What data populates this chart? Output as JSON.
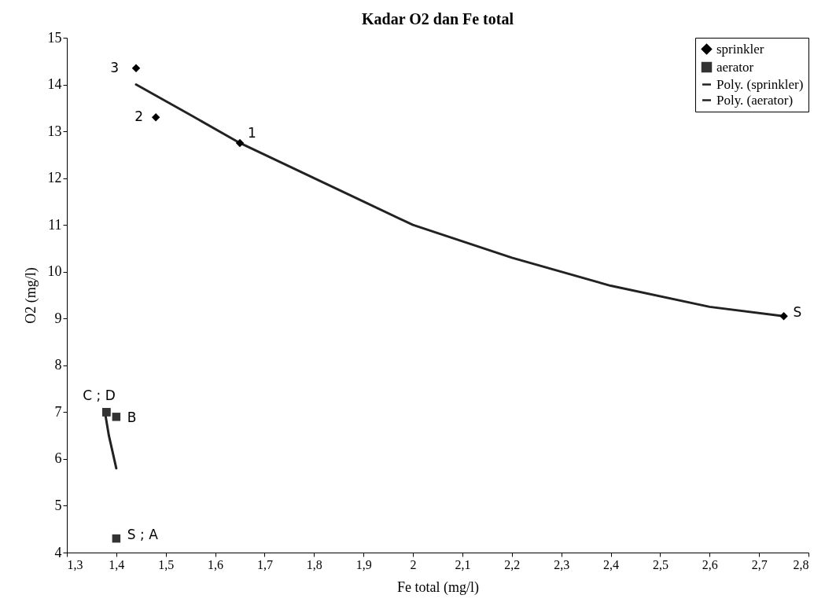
{
  "chart_data": {
    "type": "scatter",
    "title": "Kadar O2 dan Fe total",
    "xlabel": "Fe total (mg/l)",
    "ylabel": "O2 (mg/l)",
    "xlim": [
      1.3,
      2.8
    ],
    "ylim": [
      4,
      15
    ],
    "xticks": [
      {
        "value": 1.3,
        "label": "1,3"
      },
      {
        "value": 1.4,
        "label": "1,4"
      },
      {
        "value": 1.5,
        "label": "1,5"
      },
      {
        "value": 1.6,
        "label": "1,6"
      },
      {
        "value": 1.7,
        "label": "1,7"
      },
      {
        "value": 1.8,
        "label": "1,8"
      },
      {
        "value": 1.9,
        "label": "1,9"
      },
      2,
      {
        "value": 2.1,
        "label": "2,1"
      },
      {
        "value": 2.2,
        "label": "2,2"
      },
      {
        "value": 2.3,
        "label": "2,3"
      },
      {
        "value": 2.4,
        "label": "2,4"
      },
      {
        "value": 2.5,
        "label": "2,5"
      },
      {
        "value": 2.6,
        "label": "2,6"
      },
      {
        "value": 2.7,
        "label": "2,7"
      },
      {
        "value": 2.8,
        "label": "2,8"
      }
    ],
    "yticks": [
      4,
      5,
      6,
      7,
      8,
      9,
      10,
      11,
      12,
      13,
      14,
      15
    ],
    "grid": false,
    "legend": "top right",
    "series": [
      {
        "name": "sprinkler",
        "marker": "diamond",
        "color": "#000000",
        "x": [
          2.75,
          1.65,
          1.48,
          1.44
        ],
        "values": [
          9.05,
          12.75,
          13.3,
          14.35
        ]
      },
      {
        "name": "aerator",
        "marker": "square",
        "color": "#333333",
        "x": [
          1.4,
          1.4,
          1.38,
          1.38
        ],
        "values": [
          4.3,
          6.9,
          7.0,
          7.0
        ]
      },
      {
        "name": "Poly. (sprinkler)",
        "type": "line",
        "line_style": "solid",
        "color": "#222222",
        "x": [
          1.44,
          1.55,
          1.65,
          1.8,
          2.0,
          2.2,
          2.4,
          2.6,
          2.75
        ],
        "values": [
          14.0,
          13.35,
          12.75,
          12.0,
          11.0,
          10.3,
          9.7,
          9.25,
          9.05
        ]
      },
      {
        "name": "Poly. (aerator)",
        "type": "line",
        "line_style": "solid",
        "color": "#222222",
        "x": [
          1.377,
          1.385,
          1.4
        ],
        "values": [
          7.0,
          6.5,
          5.8
        ]
      }
    ],
    "annotations": [
      {
        "text": "3",
        "x": 1.44,
        "y": 14.35
      },
      {
        "text": "2",
        "x": 1.48,
        "y": 13.3
      },
      {
        "text": "1",
        "x": 1.65,
        "y": 12.75
      },
      {
        "text": "S",
        "x": 2.75,
        "y": 9.05
      },
      {
        "text": "C ; D",
        "x": 1.38,
        "y": 7.0
      },
      {
        "text": "B",
        "x": 1.4,
        "y": 6.9
      },
      {
        "text": "S ; A",
        "x": 1.4,
        "y": 4.3
      }
    ]
  }
}
